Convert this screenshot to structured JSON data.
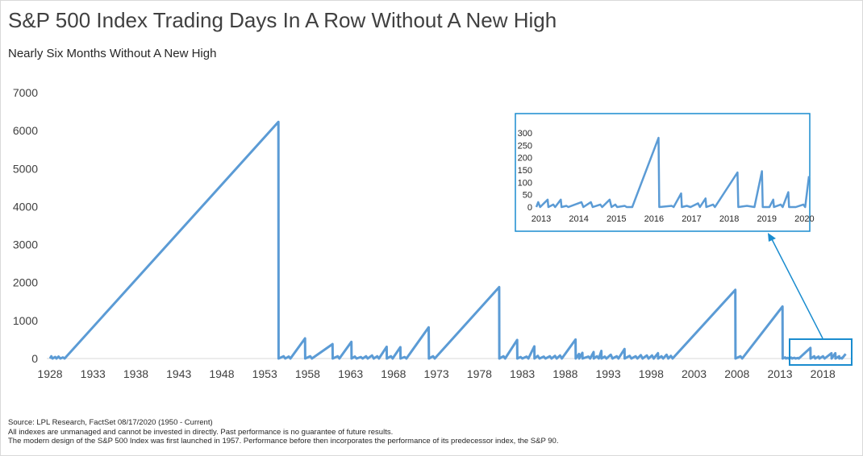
{
  "title": "S&P 500 Index Trading Days In A Row Without A New High",
  "subtitle": "Nearly Six Months Without A New High",
  "footnotes": [
    "Source: LPL Research, FactSet 08/17/2020 (1950 - Current)",
    "All indexes are unmanaged and cannot be invested in directly. Past performance is no guarantee of future results.",
    "The modern design of the S&P 500 Index was first launched in 1957. Performance before then incorporates the performance of its predecessor index, the S&P 90."
  ],
  "colors": {
    "line": "#5b9bd5",
    "inset_border": "#1a8ccf",
    "arrow": "#1a8ccf"
  },
  "chart_data": [
    {
      "type": "line",
      "title": "",
      "xlabel": "",
      "ylabel": "",
      "ylim": [
        0,
        7000
      ],
      "xlim": [
        1928,
        2020.7
      ],
      "y_ticks": [
        0,
        1000,
        2000,
        3000,
        4000,
        5000,
        6000,
        7000
      ],
      "x_ticks": [
        1928,
        1933,
        1938,
        1943,
        1948,
        1953,
        1958,
        1963,
        1968,
        1973,
        1978,
        1983,
        1988,
        1993,
        1998,
        2003,
        2008,
        2013,
        2018
      ],
      "grid": false,
      "series": [
        {
          "points": [
            [
              1928.0,
              0
            ],
            [
              1928.15,
              60
            ],
            [
              1928.3,
              0
            ],
            [
              1928.6,
              40
            ],
            [
              1928.75,
              0
            ],
            [
              1929.0,
              50
            ],
            [
              1929.2,
              0
            ],
            [
              1929.5,
              30
            ],
            [
              1929.7,
              0
            ],
            [
              1954.6,
              6230
            ],
            [
              1954.62,
              0
            ],
            [
              1955.2,
              60
            ],
            [
              1955.4,
              0
            ],
            [
              1955.8,
              50
            ],
            [
              1956.0,
              0
            ],
            [
              1957.7,
              530
            ],
            [
              1957.72,
              0
            ],
            [
              1958.3,
              60
            ],
            [
              1958.5,
              0
            ],
            [
              1960.9,
              380
            ],
            [
              1960.92,
              0
            ],
            [
              1961.5,
              60
            ],
            [
              1961.7,
              0
            ],
            [
              1963.1,
              440
            ],
            [
              1963.12,
              0
            ],
            [
              1963.5,
              50
            ],
            [
              1963.7,
              0
            ],
            [
              1964.2,
              40
            ],
            [
              1964.4,
              0
            ],
            [
              1964.8,
              60
            ],
            [
              1965.0,
              0
            ],
            [
              1965.5,
              80
            ],
            [
              1965.7,
              0
            ],
            [
              1966.1,
              60
            ],
            [
              1966.3,
              0
            ],
            [
              1967.2,
              310
            ],
            [
              1967.22,
              0
            ],
            [
              1967.7,
              60
            ],
            [
              1967.9,
              0
            ],
            [
              1968.8,
              300
            ],
            [
              1968.82,
              0
            ],
            [
              1969.3,
              40
            ],
            [
              1969.5,
              0
            ],
            [
              1972.1,
              820
            ],
            [
              1972.12,
              0
            ],
            [
              1972.6,
              60
            ],
            [
              1972.8,
              0
            ],
            [
              1980.3,
              1880
            ],
            [
              1980.32,
              0
            ],
            [
              1980.8,
              60
            ],
            [
              1981.0,
              0
            ],
            [
              1982.4,
              490
            ],
            [
              1982.42,
              0
            ],
            [
              1982.8,
              40
            ],
            [
              1983.0,
              0
            ],
            [
              1983.5,
              50
            ],
            [
              1983.7,
              0
            ],
            [
              1984.4,
              320
            ],
            [
              1984.42,
              0
            ],
            [
              1984.8,
              70
            ],
            [
              1985.0,
              0
            ],
            [
              1985.5,
              50
            ],
            [
              1985.7,
              0
            ],
            [
              1986.2,
              60
            ],
            [
              1986.4,
              0
            ],
            [
              1986.8,
              70
            ],
            [
              1987.0,
              0
            ],
            [
              1987.4,
              80
            ],
            [
              1987.6,
              0
            ],
            [
              1989.2,
              500
            ],
            [
              1989.22,
              0
            ],
            [
              1989.6,
              120
            ],
            [
              1989.62,
              0
            ],
            [
              1990.0,
              150
            ],
            [
              1990.02,
              0
            ],
            [
              1990.7,
              50
            ],
            [
              1990.9,
              0
            ],
            [
              1991.3,
              170
            ],
            [
              1991.32,
              0
            ],
            [
              1991.7,
              60
            ],
            [
              1991.9,
              0
            ],
            [
              1992.2,
              200
            ],
            [
              1992.22,
              0
            ],
            [
              1992.6,
              50
            ],
            [
              1992.8,
              0
            ],
            [
              1993.3,
              100
            ],
            [
              1993.5,
              0
            ],
            [
              1994.0,
              60
            ],
            [
              1994.2,
              0
            ],
            [
              1994.9,
              250
            ],
            [
              1994.92,
              0
            ],
            [
              1995.5,
              70
            ],
            [
              1995.7,
              0
            ],
            [
              1996.2,
              60
            ],
            [
              1996.4,
              0
            ],
            [
              1996.8,
              90
            ],
            [
              1997.0,
              0
            ],
            [
              1997.5,
              80
            ],
            [
              1997.7,
              0
            ],
            [
              1998.1,
              80
            ],
            [
              1998.3,
              0
            ],
            [
              1998.8,
              140
            ],
            [
              1998.82,
              0
            ],
            [
              1999.2,
              60
            ],
            [
              1999.4,
              0
            ],
            [
              1999.8,
              100
            ],
            [
              2000.0,
              0
            ],
            [
              2000.3,
              70
            ],
            [
              2000.5,
              0
            ],
            [
              2007.8,
              1810
            ],
            [
              2007.82,
              0
            ],
            [
              2008.4,
              60
            ],
            [
              2008.6,
              0
            ],
            [
              2013.3,
              1370
            ],
            [
              2013.32,
              0
            ],
            [
              2013.6,
              30
            ],
            [
              2013.7,
              0
            ],
            [
              2013.9,
              20
            ],
            [
              2014.0,
              0
            ],
            [
              2014.3,
              25
            ],
            [
              2014.4,
              0
            ],
            [
              2014.7,
              20
            ],
            [
              2014.8,
              0
            ],
            [
              2015.1,
              15
            ],
            [
              2015.2,
              0
            ],
            [
              2016.55,
              280
            ],
            [
              2016.57,
              0
            ],
            [
              2017.0,
              60
            ],
            [
              2017.1,
              0
            ],
            [
              2017.5,
              50
            ],
            [
              2017.6,
              0
            ],
            [
              2018.0,
              60
            ],
            [
              2018.2,
              0
            ],
            [
              2019.0,
              140
            ],
            [
              2019.02,
              0
            ],
            [
              2019.45,
              140
            ],
            [
              2019.47,
              0
            ],
            [
              2019.9,
              60
            ],
            [
              2019.92,
              0
            ],
            [
              2020.2,
              20
            ],
            [
              2020.22,
              0
            ],
            [
              2020.65,
              120
            ]
          ]
        }
      ]
    },
    {
      "type": "line",
      "title": "",
      "ylim": [
        0,
        300
      ],
      "xlim": [
        2013,
        2020.25
      ],
      "y_ticks": [
        0,
        50,
        100,
        150,
        200,
        250,
        300
      ],
      "x_ticks": [
        2013,
        2014,
        2015,
        2016,
        2017,
        2018,
        2019,
        2020
      ],
      "x_tick_labels": [
        "2013",
        "2014",
        "2015",
        "2016",
        "2017",
        "2018",
        "2019",
        "2020"
      ],
      "grid": false,
      "series": [
        {
          "points": [
            [
              2013.0,
              0
            ],
            [
              2013.05,
              20
            ],
            [
              2013.1,
              0
            ],
            [
              2013.3,
              30
            ],
            [
              2013.32,
              0
            ],
            [
              2013.45,
              10
            ],
            [
              2013.5,
              0
            ],
            [
              2013.65,
              30
            ],
            [
              2013.67,
              0
            ],
            [
              2013.8,
              5
            ],
            [
              2013.85,
              0
            ],
            [
              2014.2,
              20
            ],
            [
              2014.25,
              0
            ],
            [
              2014.45,
              20
            ],
            [
              2014.5,
              0
            ],
            [
              2014.7,
              10
            ],
            [
              2014.75,
              0
            ],
            [
              2014.95,
              30
            ],
            [
              2015.0,
              0
            ],
            [
              2015.1,
              10
            ],
            [
              2015.15,
              0
            ],
            [
              2015.35,
              5
            ],
            [
              2015.4,
              0
            ],
            [
              2015.55,
              0
            ],
            [
              2016.25,
              280
            ],
            [
              2016.27,
              0
            ],
            [
              2016.6,
              5
            ],
            [
              2016.65,
              0
            ],
            [
              2016.85,
              55
            ],
            [
              2016.87,
              0
            ],
            [
              2017.0,
              5
            ],
            [
              2017.1,
              0
            ],
            [
              2017.3,
              15
            ],
            [
              2017.35,
              0
            ],
            [
              2017.5,
              35
            ],
            [
              2017.52,
              0
            ],
            [
              2017.7,
              10
            ],
            [
              2017.75,
              0
            ],
            [
              2018.35,
              140
            ],
            [
              2018.37,
              0
            ],
            [
              2018.6,
              5
            ],
            [
              2018.8,
              0
            ],
            [
              2019.0,
              145
            ],
            [
              2019.02,
              0
            ],
            [
              2019.2,
              0
            ],
            [
              2019.3,
              30
            ],
            [
              2019.32,
              0
            ],
            [
              2019.5,
              10
            ],
            [
              2019.55,
              0
            ],
            [
              2019.7,
              60
            ],
            [
              2019.72,
              0
            ],
            [
              2019.9,
              0
            ],
            [
              2020.1,
              10
            ],
            [
              2020.15,
              0
            ],
            [
              2020.25,
              125
            ]
          ]
        }
      ]
    }
  ]
}
